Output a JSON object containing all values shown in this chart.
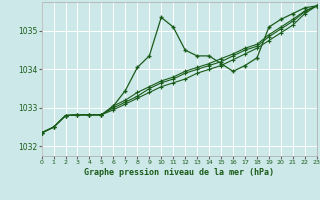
{
  "title": "Graphe pression niveau de la mer (hPa)",
  "bg_color": "#cce8e8",
  "grid_color": "#ffffff",
  "line_color": "#1a5c1a",
  "x_min": 0,
  "x_max": 23,
  "y_min": 1031.75,
  "y_max": 1035.75,
  "yticks": [
    1032,
    1033,
    1034,
    1035
  ],
  "xticks": [
    0,
    1,
    2,
    3,
    4,
    5,
    6,
    7,
    8,
    9,
    10,
    11,
    12,
    13,
    14,
    15,
    16,
    17,
    18,
    19,
    20,
    21,
    22,
    23
  ],
  "series": [
    [
      1032.35,
      1032.5,
      1032.8,
      1032.82,
      1032.82,
      1032.82,
      1033.05,
      1033.45,
      1034.05,
      1034.35,
      1035.35,
      1035.1,
      1034.5,
      1034.35,
      1034.35,
      1034.15,
      1033.95,
      1034.1,
      1034.3,
      1035.1,
      1035.3,
      1035.45,
      1035.6,
      1035.65
    ],
    [
      1032.35,
      1032.5,
      1032.8,
      1032.82,
      1032.82,
      1032.82,
      1032.95,
      1033.1,
      1033.25,
      1033.4,
      1033.55,
      1033.65,
      1033.75,
      1033.9,
      1034.0,
      1034.1,
      1034.25,
      1034.4,
      1034.55,
      1034.75,
      1034.95,
      1035.15,
      1035.45,
      1035.65
    ],
    [
      1032.35,
      1032.5,
      1032.8,
      1032.82,
      1032.82,
      1032.82,
      1033.0,
      1033.15,
      1033.3,
      1033.5,
      1033.65,
      1033.75,
      1033.9,
      1034.0,
      1034.1,
      1034.2,
      1034.35,
      1034.5,
      1034.6,
      1034.85,
      1035.05,
      1035.25,
      1035.5,
      1035.65
    ],
    [
      1032.35,
      1032.5,
      1032.8,
      1032.82,
      1032.82,
      1032.82,
      1033.05,
      1033.2,
      1033.4,
      1033.55,
      1033.7,
      1033.8,
      1033.95,
      1034.05,
      1034.15,
      1034.28,
      1034.4,
      1034.55,
      1034.65,
      1034.9,
      1035.1,
      1035.3,
      1035.52,
      1035.65
    ]
  ]
}
